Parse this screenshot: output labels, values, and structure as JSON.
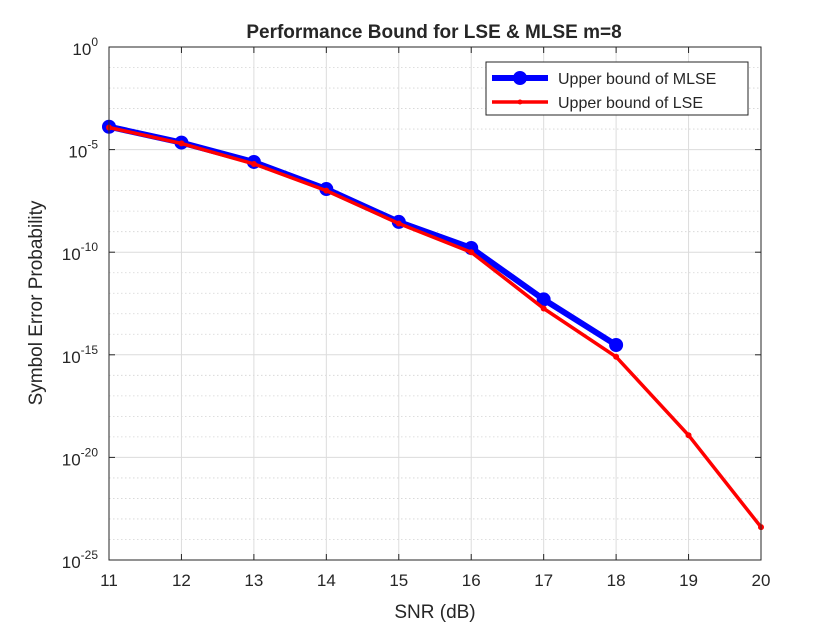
{
  "chart_data": {
    "type": "line",
    "title": "Performance Bound for LSE & MLSE m=8",
    "xlabel": "SNR (dB)",
    "ylabel": "Symbol Error Probability",
    "xlim": [
      11,
      20
    ],
    "ylim": [
      1e-25,
      1
    ],
    "yscale": "log",
    "grid": true,
    "minor_grid": true,
    "legend_position": "top-right",
    "x_ticks": [
      11,
      12,
      13,
      14,
      15,
      16,
      17,
      18,
      19,
      20
    ],
    "y_ticks": [
      {
        "base": "10",
        "exp": "0"
      },
      {
        "base": "10",
        "exp": "-5"
      },
      {
        "base": "10",
        "exp": "-10"
      },
      {
        "base": "10",
        "exp": "-15"
      },
      {
        "base": "10",
        "exp": "-20"
      },
      {
        "base": "10",
        "exp": "-25"
      }
    ],
    "series": [
      {
        "name": "Upper bound of MLSE",
        "color": "#0000ff",
        "marker": "circle",
        "x": [
          11,
          12,
          13,
          14,
          15,
          16,
          17,
          18
        ],
        "y": [
          0.00013,
          2.2e-05,
          2.5e-06,
          1.2e-07,
          3e-09,
          1.6e-10,
          5e-13,
          3e-15
        ]
      },
      {
        "name": "Upper bound of LSE",
        "color": "#ff0000",
        "marker": "dot",
        "x": [
          11,
          12,
          13,
          14,
          15,
          16,
          17,
          18,
          19,
          20
        ],
        "y": [
          0.00012,
          2e-05,
          2e-06,
          1e-07,
          2.5e-09,
          1e-10,
          1.8e-13,
          8e-16,
          1.2e-19,
          4e-24
        ]
      }
    ]
  }
}
